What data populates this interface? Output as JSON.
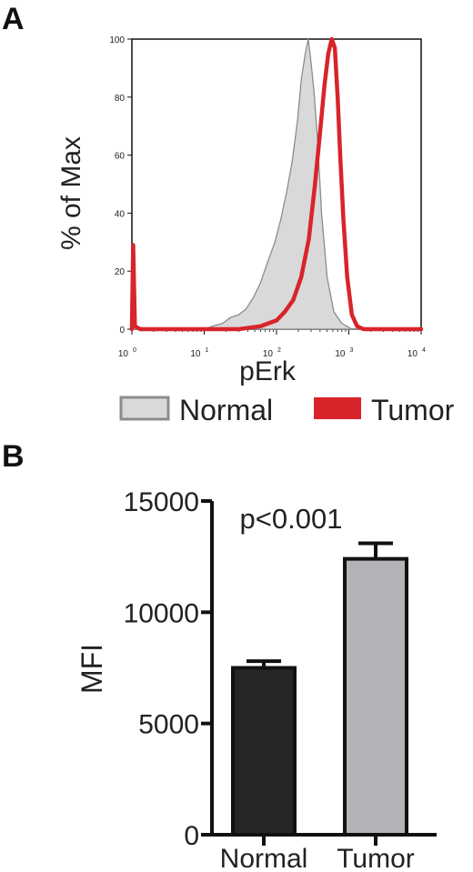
{
  "panels": {
    "a_label": "A",
    "b_label": "B"
  },
  "colors": {
    "normal_fill": "#d9d9d9",
    "normal_line": "#8c8c8c",
    "tumor_line": "#d8242a",
    "bar_normal": "#262626",
    "bar_tumor": "#b3b3b7"
  },
  "chart_data": [
    {
      "type": "area",
      "xlabel": "pErk",
      "ylabel": "% of Max",
      "x_scale": "log",
      "xlim": [
        1,
        10000
      ],
      "ylim": [
        0,
        100
      ],
      "y_ticks": [
        "0",
        "20",
        "40",
        "60",
        "80",
        "100"
      ],
      "x_ticks": [
        {
          "base": "10",
          "exp": "0"
        },
        {
          "base": "10",
          "exp": "1"
        },
        {
          "base": "10",
          "exp": "2"
        },
        {
          "base": "10",
          "exp": "3"
        },
        {
          "base": "10",
          "exp": "4"
        }
      ],
      "legend_position": "bottom",
      "series": [
        {
          "name": "Normal",
          "style": "filled",
          "points": [
            [
              1,
              0
            ],
            [
              1.05,
              28
            ],
            [
              1.12,
              1
            ],
            [
              1.3,
              0
            ],
            [
              10,
              0
            ],
            [
              13,
              1
            ],
            [
              18,
              2
            ],
            [
              23,
              4
            ],
            [
              30,
              5
            ],
            [
              38,
              7
            ],
            [
              48,
              11
            ],
            [
              60,
              16
            ],
            [
              75,
              23
            ],
            [
              95,
              30
            ],
            [
              115,
              38
            ],
            [
              140,
              48
            ],
            [
              165,
              58
            ],
            [
              195,
              72
            ],
            [
              220,
              86
            ],
            [
              250,
              95
            ],
            [
              275,
              100
            ],
            [
              300,
              92
            ],
            [
              330,
              82
            ],
            [
              370,
              65
            ],
            [
              420,
              40
            ],
            [
              500,
              18
            ],
            [
              620,
              6
            ],
            [
              800,
              2
            ],
            [
              1100,
              0
            ],
            [
              10000,
              0
            ]
          ]
        },
        {
          "name": "Tumor",
          "style": "line",
          "points": [
            [
              1,
              0
            ],
            [
              1.04,
              29
            ],
            [
              1.1,
              1
            ],
            [
              1.3,
              0
            ],
            [
              30,
              0
            ],
            [
              60,
              1
            ],
            [
              100,
              3
            ],
            [
              130,
              6
            ],
            [
              170,
              10
            ],
            [
              220,
              18
            ],
            [
              280,
              31
            ],
            [
              340,
              50
            ],
            [
              400,
              68
            ],
            [
              460,
              84
            ],
            [
              520,
              95
            ],
            [
              580,
              100
            ],
            [
              640,
              97
            ],
            [
              700,
              80
            ],
            [
              760,
              60
            ],
            [
              840,
              38
            ],
            [
              950,
              18
            ],
            [
              1100,
              5
            ],
            [
              1300,
              1
            ],
            [
              1600,
              0
            ],
            [
              10000,
              0
            ]
          ]
        }
      ]
    },
    {
      "type": "bar",
      "categories": [
        "Normal",
        "Tumor"
      ],
      "values": [
        7500,
        12400
      ],
      "errors": [
        300,
        700
      ],
      "ylabel": "MFI",
      "ylim": [
        0,
        15000
      ],
      "y_ticks": [
        "0",
        "5000",
        "10000",
        "15000"
      ],
      "annotation": "p<0.001"
    }
  ]
}
